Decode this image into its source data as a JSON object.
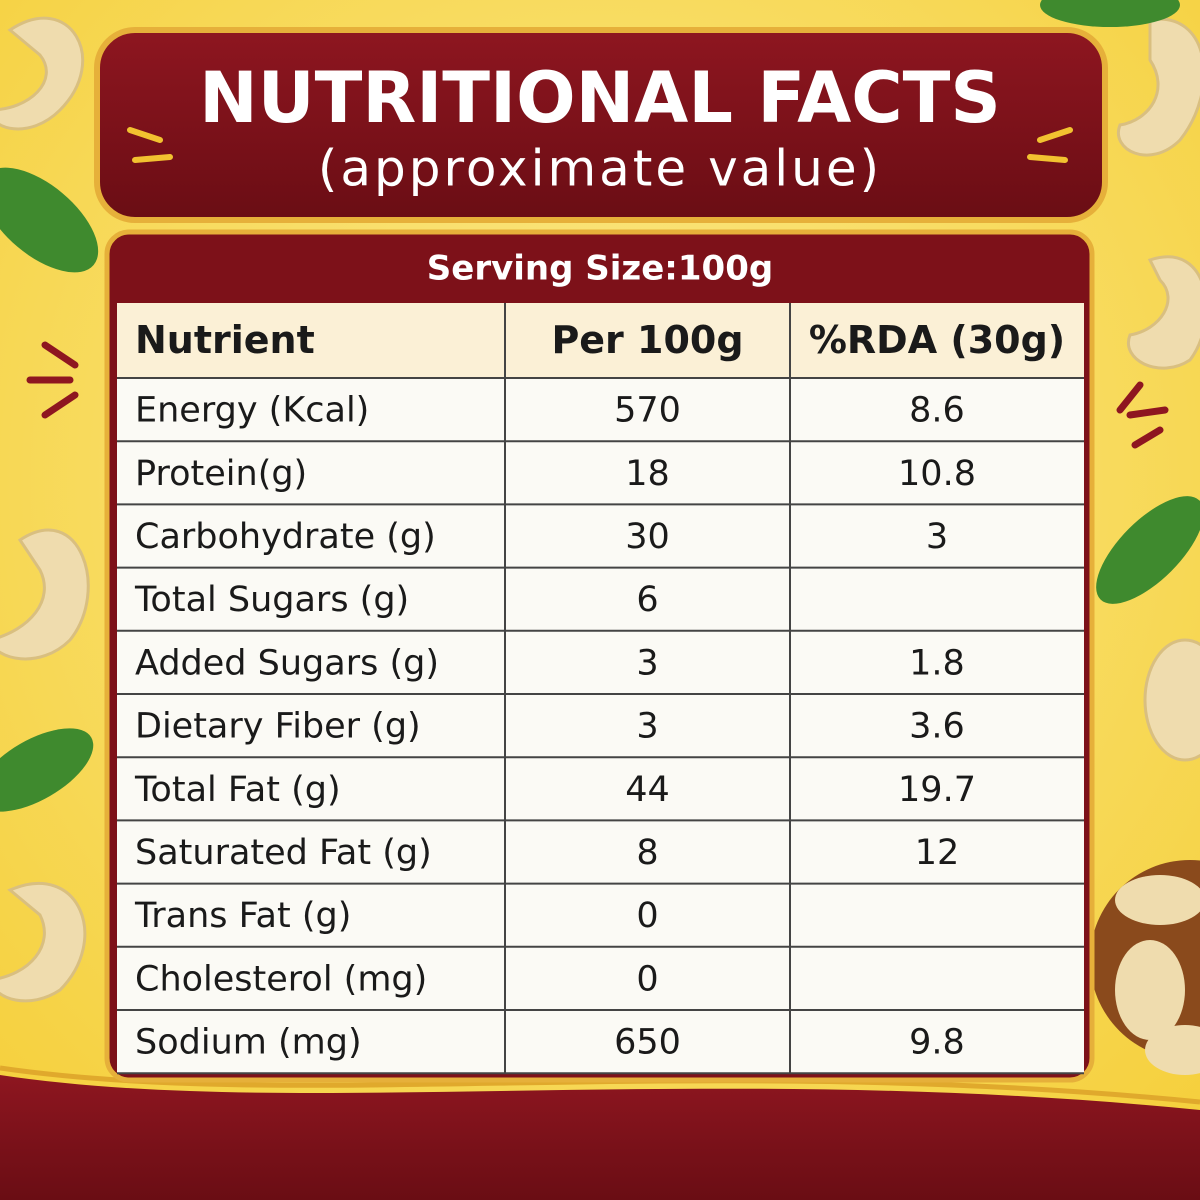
{
  "header": {
    "title": "NUTRITIONAL FACTS",
    "subtitle": "(approximate value)"
  },
  "table": {
    "serving_size": "Serving Size:100g",
    "columns": [
      "Nutrient",
      "Per 100g",
      "%RDA (30g)"
    ],
    "rows": [
      [
        "Energy (Kcal)",
        "570",
        "8.6"
      ],
      [
        "Protein(g)",
        "18",
        "10.8"
      ],
      [
        "Carbohydrate (g)",
        "30",
        "3"
      ],
      [
        "Total Sugars (g)",
        "6"
      ],
      [
        "Added Sugars (g)",
        "3",
        "1.8"
      ],
      [
        "Dietary Fiber (g)",
        "3",
        "3.6"
      ],
      [
        "Total Fat (g)",
        "44",
        "19.7"
      ],
      [
        "Saturated Fat (g)",
        "8",
        "12"
      ],
      [
        "Trans Fat (g)",
        "0"
      ],
      [
        "Cholesterol (mg)",
        "0"
      ],
      [
        "Sodium (mg)",
        "650",
        "9.8"
      ]
    ]
  }
}
